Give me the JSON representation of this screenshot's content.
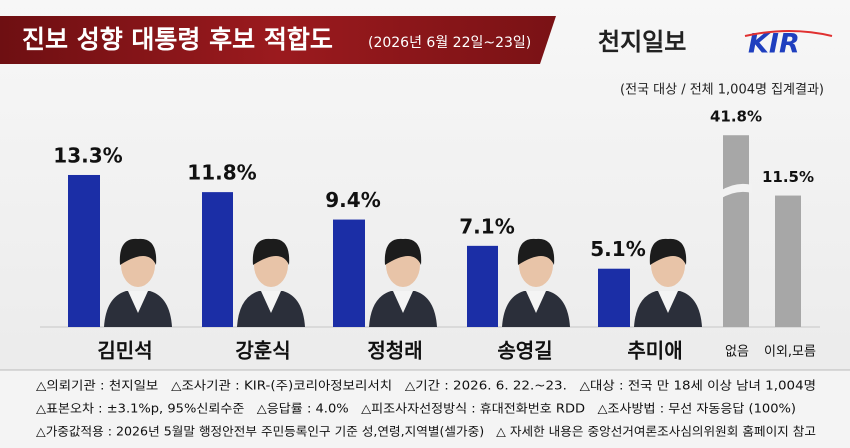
{
  "chart_data": {
    "type": "bar",
    "title": "진보 성향 대통령 후보 적합도",
    "subtitle": "(2026년 6월 22일~23일)",
    "publisher": "천지일보",
    "logo": "KIR",
    "note": "(전국 대상 / 전체 1,004명 집계결과)",
    "categories": [
      "김민석",
      "강훈식",
      "정청래",
      "송영길",
      "추미애",
      "없음",
      "이외,모름"
    ],
    "values": [
      13.3,
      11.8,
      9.4,
      7.1,
      5.1,
      41.8,
      11.5
    ],
    "value_labels": [
      "13.3%",
      "11.8%",
      "9.4%",
      "7.1%",
      "5.1%",
      "41.8%",
      "11.5%"
    ],
    "colors": [
      "#1b2ea6",
      "#1b2ea6",
      "#1b2ea6",
      "#1b2ea6",
      "#1b2ea6",
      "#a7a7a7",
      "#a7a7a7"
    ],
    "footnotes": [
      "△의뢰기관 : 천지일보   △조사기관 : KIR-(주)코리아정보리서치   △기간 : 2026. 6. 22.~23.   △대상 : 전국 만 18세 이상 남녀 1,004명",
      "△표본오차 : ±3.1%p, 95%신뢰수준   △응답률 : 4.0%   △피조사자선정방식 : 휴대전화번호 RDD   △조사방법 : 무선 자동응답 (100%)",
      "△가중값적용 : 2026년 5월말 행정안전부 주민등록인구 기준 성,연령,지역별(셀가중)   △ 자세한 내용은 중앙선거여론조사심의위원회 홈페이지 참고"
    ]
  }
}
